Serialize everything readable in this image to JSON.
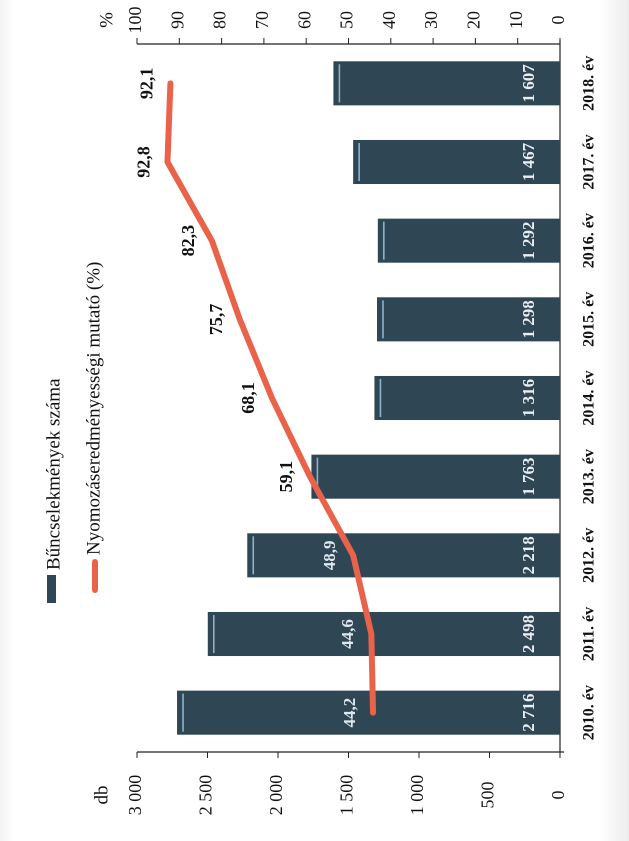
{
  "chart_data": {
    "type": "bar",
    "orientation": "rotated-90-clockwise",
    "categories": [
      "2010. év",
      "2011. év",
      "2012. év",
      "2013. év",
      "2014. év",
      "2015. év",
      "2016. év",
      "2017. év",
      "2018. év"
    ],
    "bar_labels": [
      "2 716",
      "2 498",
      "2 218",
      "1 763",
      "1 316",
      "1 298",
      "1 292",
      "1 467",
      "1 607"
    ],
    "line_labels": [
      "44,2",
      "44,6",
      "48,9",
      "59,1",
      "68,1",
      "75,7",
      "82,3",
      "92,8",
      "92,1"
    ],
    "series": [
      {
        "name": "Bűncselekmények száma",
        "axis": "left",
        "type": "bar",
        "color": "#2f4654",
        "values": [
          2716,
          2498,
          2218,
          1763,
          1316,
          1298,
          1292,
          1467,
          1607
        ]
      },
      {
        "name": "Nyomozáseredményességi mutató (%)",
        "axis": "right",
        "type": "line",
        "color": "#e8634a",
        "values": [
          44.2,
          44.6,
          48.9,
          59.1,
          68.1,
          75.7,
          82.3,
          92.8,
          92.1
        ]
      }
    ],
    "left_axis": {
      "unit": "db",
      "range": [
        0,
        3000
      ],
      "ticks": [
        0,
        500,
        1000,
        1500,
        2000,
        2500,
        3000
      ],
      "tick_labels": [
        "0",
        "500",
        "1 000",
        "1 500",
        "2 000",
        "2 500",
        "3 000"
      ]
    },
    "right_axis": {
      "unit": "%",
      "range": [
        0,
        100
      ],
      "ticks": [
        0,
        10,
        20,
        30,
        40,
        50,
        60,
        70,
        80,
        90,
        100
      ],
      "tick_labels": [
        "0",
        "10",
        "20",
        "30",
        "40",
        "50",
        "60",
        "70",
        "80",
        "90",
        "100"
      ]
    },
    "legend": {
      "placement": "top-left",
      "entries": [
        "Bűncselekmények száma",
        "Nyomozáseredményességi mutató (%)"
      ]
    },
    "grid": false
  }
}
